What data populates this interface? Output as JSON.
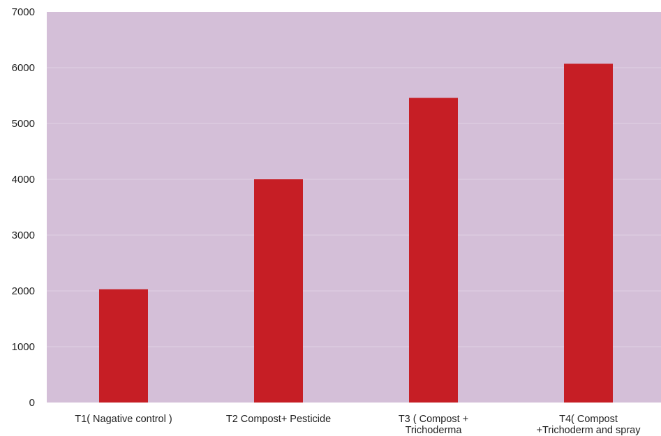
{
  "chart_data": {
    "type": "bar",
    "categories": [
      [
        "T1( Nagative control )"
      ],
      [
        "T2 Compost+ Pesticide"
      ],
      [
        "T3 ( Compost +",
        "Trichoderma"
      ],
      [
        "T4( Compost",
        "+Trichoderm and spray"
      ]
    ],
    "values": [
      2030,
      4000,
      5460,
      6070
    ],
    "yticks": [
      "0",
      "1000",
      "2000",
      "3000",
      "4000",
      "5000",
      "6000",
      "7000"
    ],
    "ylim": [
      0,
      7000
    ],
    "grid": true,
    "legend": "none",
    "title": "",
    "xlabel": "",
    "ylabel": ""
  },
  "colors": {
    "plot_background": "#d4bfd8",
    "bar": "#c61e25",
    "gridline": "#e0d2e3",
    "axis_text": "#222222"
  }
}
